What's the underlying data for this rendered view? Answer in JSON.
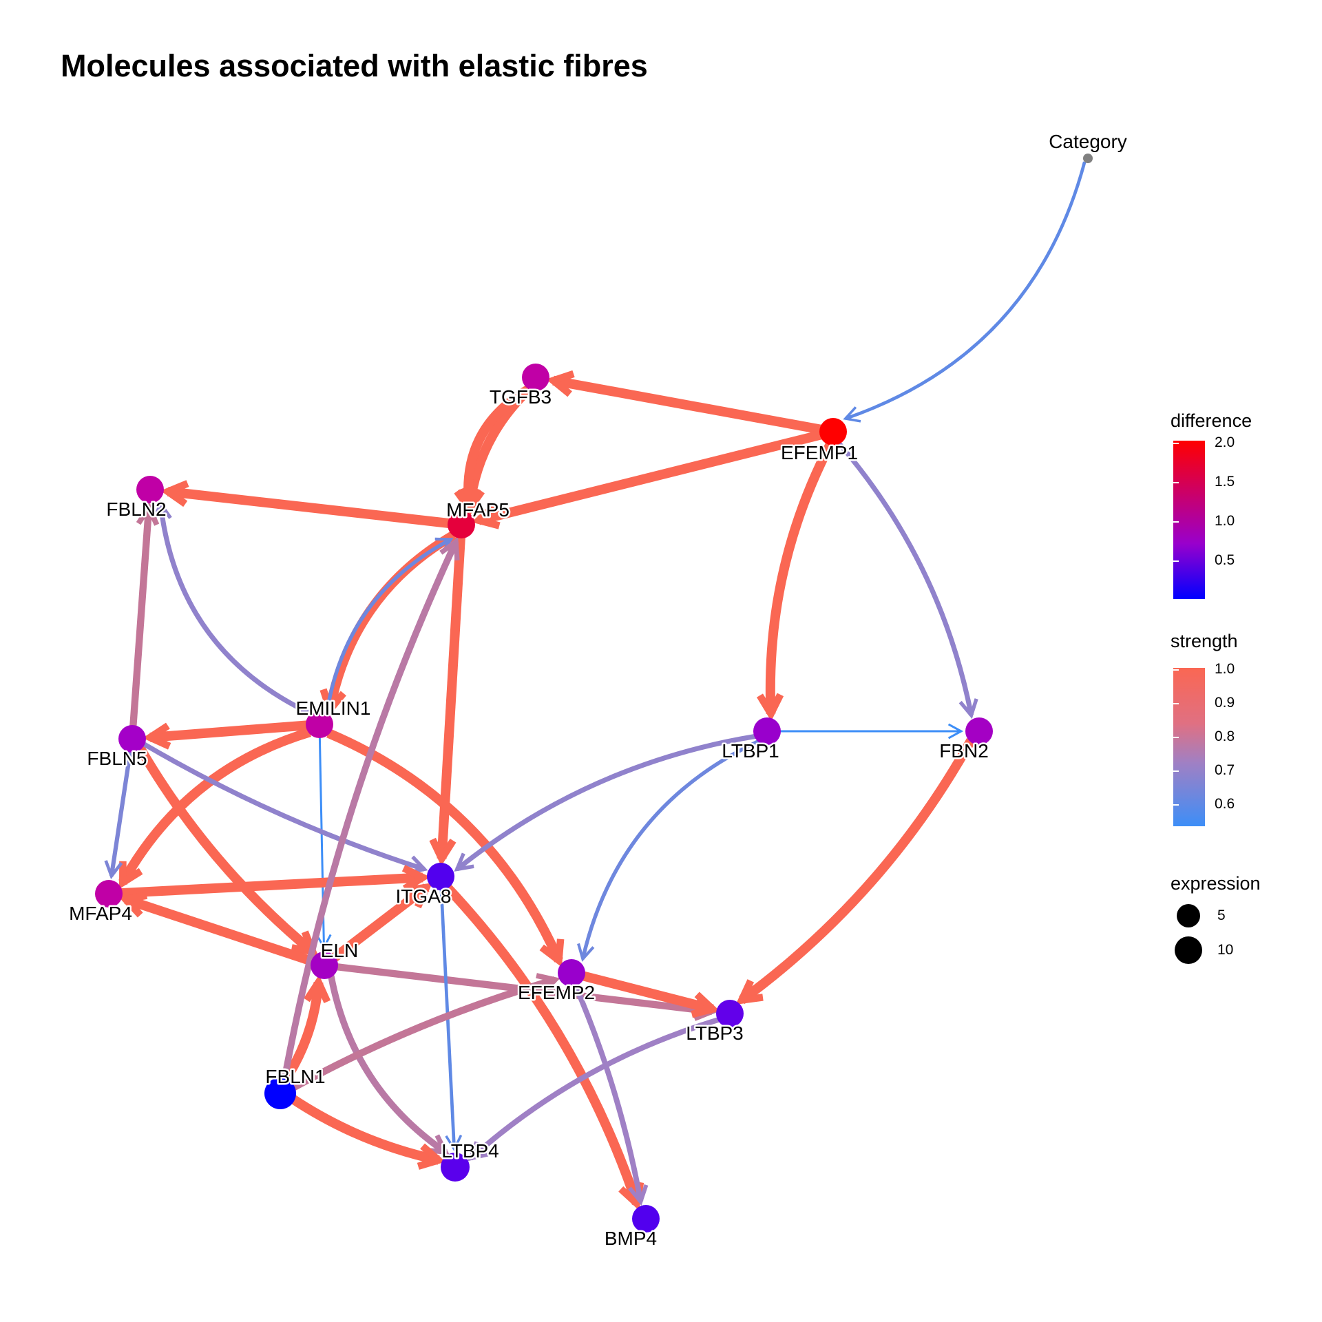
{
  "title": "Molecules associated with elastic fibres",
  "colors": {
    "difference_low": "#0000ff",
    "difference_mid": "#9900cc",
    "difference_high": "#ff0000",
    "strength_low": "#3d8ef7",
    "strength_high": "#fa6753",
    "category_node": "#808080"
  },
  "legend": {
    "difference": {
      "title": "difference",
      "ticks": [
        "2.0",
        "1.5",
        "1.0",
        "0.5"
      ],
      "range": [
        0.05,
        2.1
      ]
    },
    "strength": {
      "title": "strength",
      "ticks": [
        "1.0",
        "0.9",
        "0.8",
        "0.7",
        "0.6"
      ],
      "range": [
        0.55,
        1.0
      ]
    },
    "expression": {
      "title": "expression",
      "ticks": [
        "5",
        "10"
      ]
    }
  },
  "nodes": [
    {
      "id": "Category",
      "label": "Category",
      "fill": "#808080",
      "size": 1
    },
    {
      "id": "EFEMP1",
      "label": "EFEMP1",
      "fill": "#ff0000",
      "size": 6
    },
    {
      "id": "TGFB3",
      "label": "TGFB3",
      "fill": "#c000a6",
      "size": 6
    },
    {
      "id": "MFAP5",
      "label": "MFAP5",
      "fill": "#e5003c",
      "size": 6
    },
    {
      "id": "FBLN2",
      "label": "FBLN2",
      "fill": "#c000a6",
      "size": 6
    },
    {
      "id": "EMILIN1",
      "label": "EMILIN1",
      "fill": "#c000a6",
      "size": 6
    },
    {
      "id": "FBLN5",
      "label": "FBLN5",
      "fill": "#a400c8",
      "size": 6
    },
    {
      "id": "LTBP1",
      "label": "LTBP1",
      "fill": "#9900cc",
      "size": 6
    },
    {
      "id": "FBN2",
      "label": "FBN2",
      "fill": "#a400c4",
      "size": 6
    },
    {
      "id": "ITGA8",
      "label": "ITGA8",
      "fill": "#5200ee",
      "size": 6
    },
    {
      "id": "MFAP4",
      "label": "MFAP4",
      "fill": "#c000a6",
      "size": 6
    },
    {
      "id": "ELN",
      "label": "ELN",
      "fill": "#a400c4",
      "size": 6
    },
    {
      "id": "EFEMP2",
      "label": "EFEMP2",
      "fill": "#9900cc",
      "size": 6
    },
    {
      "id": "LTBP3",
      "label": "LTBP3",
      "fill": "#6200ea",
      "size": 6
    },
    {
      "id": "FBLN1",
      "label": "FBLN1",
      "fill": "#0000ff",
      "size": 12
    },
    {
      "id": "LTBP4",
      "label": "LTBP4",
      "fill": "#5a00ec",
      "size": 7
    },
    {
      "id": "BMP4",
      "label": "BMP4",
      "fill": "#5200ee",
      "size": 6
    }
  ],
  "edges": [
    {
      "from": "Category",
      "to": "EFEMP1",
      "strength": 0.62
    },
    {
      "from": "EFEMP1",
      "to": "TGFB3",
      "strength": 1.0
    },
    {
      "from": "EFEMP1",
      "to": "MFAP5",
      "strength": 1.0
    },
    {
      "from": "EFEMP1",
      "to": "LTBP1",
      "strength": 1.0
    },
    {
      "from": "EFEMP1",
      "to": "FBN2",
      "strength": 0.72
    },
    {
      "from": "TGFB3",
      "to": "MFAP5",
      "strength": 1.0
    },
    {
      "from": "TGFB3",
      "to": "MFAP5",
      "strength": 1.0
    },
    {
      "from": "MFAP5",
      "to": "FBLN2",
      "strength": 1.0
    },
    {
      "from": "MFAP5",
      "to": "EMILIN1",
      "strength": 1.0
    },
    {
      "from": "MFAP5",
      "to": "ITGA8",
      "strength": 1.0
    },
    {
      "from": "EMILIN1",
      "to": "MFAP5",
      "strength": 0.65
    },
    {
      "from": "EMILIN1",
      "to": "FBLN2",
      "strength": 0.72
    },
    {
      "from": "EMILIN1",
      "to": "FBLN5",
      "strength": 1.0
    },
    {
      "from": "EMILIN1",
      "to": "MFAP4",
      "strength": 1.0
    },
    {
      "from": "EMILIN1",
      "to": "ELN",
      "strength": 0.55
    },
    {
      "from": "EMILIN1",
      "to": "EFEMP2",
      "strength": 1.0
    },
    {
      "from": "FBLN5",
      "to": "FBLN2",
      "strength": 0.85
    },
    {
      "from": "FBLN5",
      "to": "MFAP4",
      "strength": 0.68
    },
    {
      "from": "FBLN5",
      "to": "ELN",
      "strength": 1.0
    },
    {
      "from": "FBLN5",
      "to": "ITGA8",
      "strength": 0.72
    },
    {
      "from": "LTBP1",
      "to": "FBN2",
      "strength": 0.55
    },
    {
      "from": "LTBP1",
      "to": "ITGA8",
      "strength": 0.72
    },
    {
      "from": "LTBP1",
      "to": "EFEMP2",
      "strength": 0.65
    },
    {
      "from": "FBN2",
      "to": "LTBP3",
      "strength": 1.0
    },
    {
      "from": "MFAP4",
      "to": "ITGA8",
      "strength": 1.0
    },
    {
      "from": "ELN",
      "to": "MFAP4",
      "strength": 1.0
    },
    {
      "from": "ELN",
      "to": "ITGA8",
      "strength": 1.0
    },
    {
      "from": "ELN",
      "to": "LTBP3",
      "strength": 0.85
    },
    {
      "from": "ELN",
      "to": "LTBP4",
      "strength": 0.82
    },
    {
      "from": "ITGA8",
      "to": "LTBP4",
      "strength": 0.62
    },
    {
      "from": "ITGA8",
      "to": "BMP4",
      "strength": 1.0
    },
    {
      "from": "EFEMP2",
      "to": "LTBP3",
      "strength": 1.0
    },
    {
      "from": "EFEMP2",
      "to": "BMP4",
      "strength": 0.75
    },
    {
      "from": "FBLN1",
      "to": "ELN",
      "strength": 1.0
    },
    {
      "from": "FBLN1",
      "to": "EFEMP2",
      "strength": 0.85
    },
    {
      "from": "FBLN1",
      "to": "LTBP4",
      "strength": 1.0
    },
    {
      "from": "FBLN1",
      "to": "MFAP5",
      "strength": 0.82
    },
    {
      "from": "LTBP3",
      "to": "LTBP4",
      "strength": 0.75
    }
  ]
}
